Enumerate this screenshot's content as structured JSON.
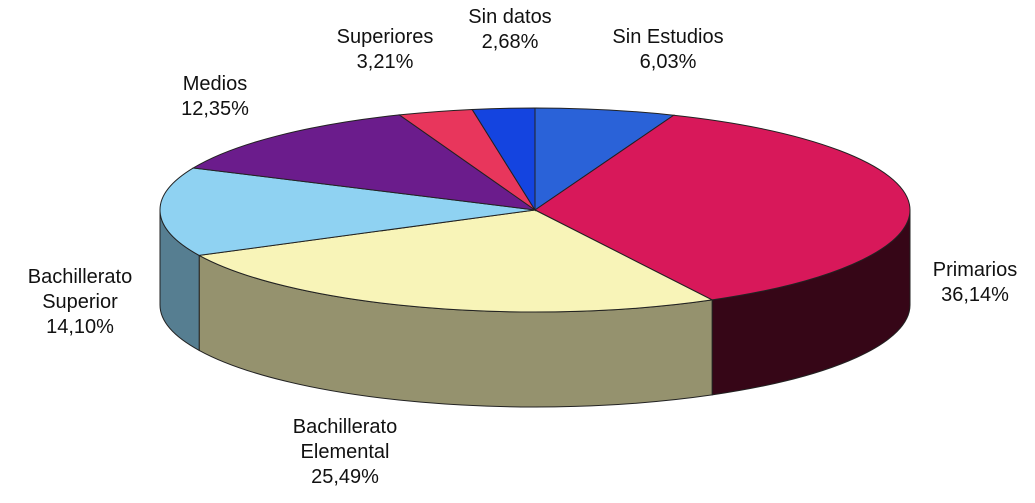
{
  "chart_data": {
    "type": "pie3d",
    "categories": [
      "Sin Estudios",
      "Primarios",
      "Bachillerato Elemental",
      "Bachillerato Superior",
      "Medios",
      "Superiores",
      "Sin datos"
    ],
    "values": [
      6.03,
      36.14,
      25.49,
      14.1,
      12.35,
      3.21,
      2.68
    ],
    "value_labels": [
      "6,03%",
      "36,14%",
      "25,49%",
      "14,10%",
      "12,35%",
      "3,21%",
      "2,68%"
    ],
    "colors": [
      "#2a62d8",
      "#d8185a",
      "#f8f4b8",
      "#8fd2f2",
      "#6b1c8c",
      "#e8365c",
      "#1444e0"
    ]
  }
}
